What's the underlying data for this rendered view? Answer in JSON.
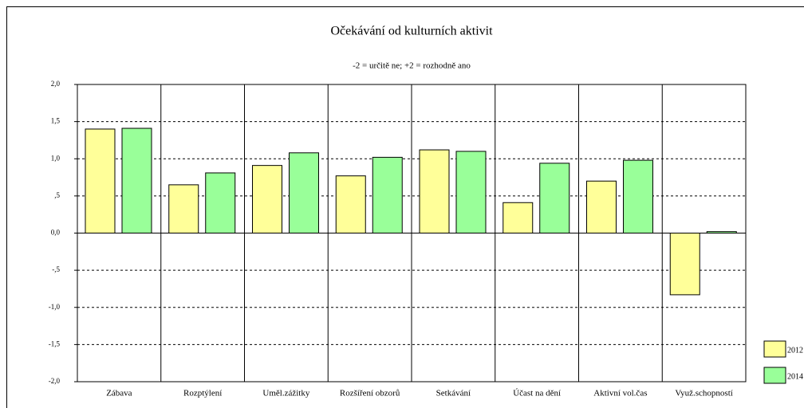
{
  "chart_data": {
    "type": "bar",
    "title": "Očekávání od kulturních aktivit",
    "subtitle": "-2 = určitě ne; +2 = rozhodně ano",
    "categories": [
      "Zábava",
      "Rozptýlení",
      "Uměl.zážitky",
      "Rozšíření obzorů",
      "Setkávání",
      "Účast na dění",
      "Aktivní vol.čas",
      "Využ.schopností"
    ],
    "series": [
      {
        "name": "2012",
        "color": "#ffff99",
        "values": [
          1.4,
          0.65,
          0.91,
          0.77,
          1.12,
          0.41,
          0.7,
          -0.83
        ]
      },
      {
        "name": "2014",
        "color": "#99ff99",
        "values": [
          1.41,
          0.81,
          1.08,
          1.02,
          1.1,
          0.94,
          0.98,
          0.02
        ]
      }
    ],
    "ylim": [
      -2,
      2
    ],
    "yticks": [
      {
        "value": 2,
        "label": "2,0"
      },
      {
        "value": 1.5,
        "label": "1,5"
      },
      {
        "value": 1,
        "label": "1,0"
      },
      {
        "value": 0.5,
        "label": ",5"
      },
      {
        "value": 0,
        "label": "0,0"
      },
      {
        "value": -0.5,
        "label": "-,5"
      },
      {
        "value": -1,
        "label": "-1,0"
      },
      {
        "value": -1.5,
        "label": "-1,5"
      },
      {
        "value": -2,
        "label": "-2,0"
      }
    ],
    "grid": true,
    "legend": "right"
  }
}
